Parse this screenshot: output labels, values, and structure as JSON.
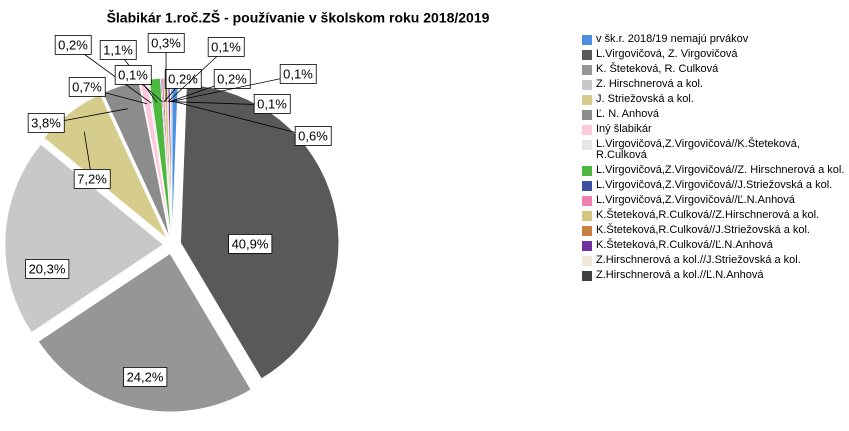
{
  "chart_data": {
    "type": "pie",
    "title": "Šlabikár 1.roč.ZŠ - používanie v školskom roku 2018/2019",
    "categories": [
      "v šk.r. 2018/19 nemajú prvákov",
      "L.Virgovičová,  Z. Virgovičová",
      "K. Šteteková, R. Culková",
      "Z. Hirschnerová a kol.",
      "J. Striežovská a kol.",
      "Ľ. N. Anhová",
      "Iný šlabikár",
      "L.Virgovičová,Z.Virgovičová//K.Šteteková, R.Culková",
      "L.Virgovičová,Z.Virgovičová//Z. Hirschnerová a kol.",
      "L.Virgovičová,Z.Virgovičová//J.Striežovská a kol.",
      "L.Virgovičová,Z.Virgovičová//Ľ.N.Anhová",
      "K.Šteteková,R.Culková//Z.Hirschnerová a kol.",
      "K.Šteteková,R.Culková//J.Striežovská a kol.",
      "K.Šteteková,R.Culková//Ľ.N.Anhová",
      "Z.Hirschnerová a kol.//J.Striežovská a kol.",
      "Z.Hirschnerová a kol.//Ľ.N.Anhová"
    ],
    "values": [
      0.6,
      40.9,
      24.2,
      20.3,
      7.2,
      3.8,
      0.7,
      0.2,
      1.1,
      0.1,
      0.2,
      0.3,
      0.1,
      0.2,
      0.1,
      0.1
    ],
    "value_labels": [
      "0,6%",
      "40,9%",
      "24,2%",
      "20,3%",
      "7,2%",
      "3,8%",
      "0,7%",
      "0,2%",
      "1,1%",
      "0,1%",
      "0,2%",
      "0,3%",
      "0,1%",
      "0,2%",
      "0,1%",
      "0,1%"
    ],
    "colors": [
      "#4a90e2",
      "#595959",
      "#969696",
      "#c8c8c8",
      "#d6cc8c",
      "#8c8c8c",
      "#ffc8dc",
      "#e6e6e6",
      "#4cb840",
      "#3a50a0",
      "#f080b0",
      "#d4c880",
      "#c88040",
      "#7030a0",
      "#f0e8d8",
      "#404040"
    ],
    "legend": "right"
  }
}
